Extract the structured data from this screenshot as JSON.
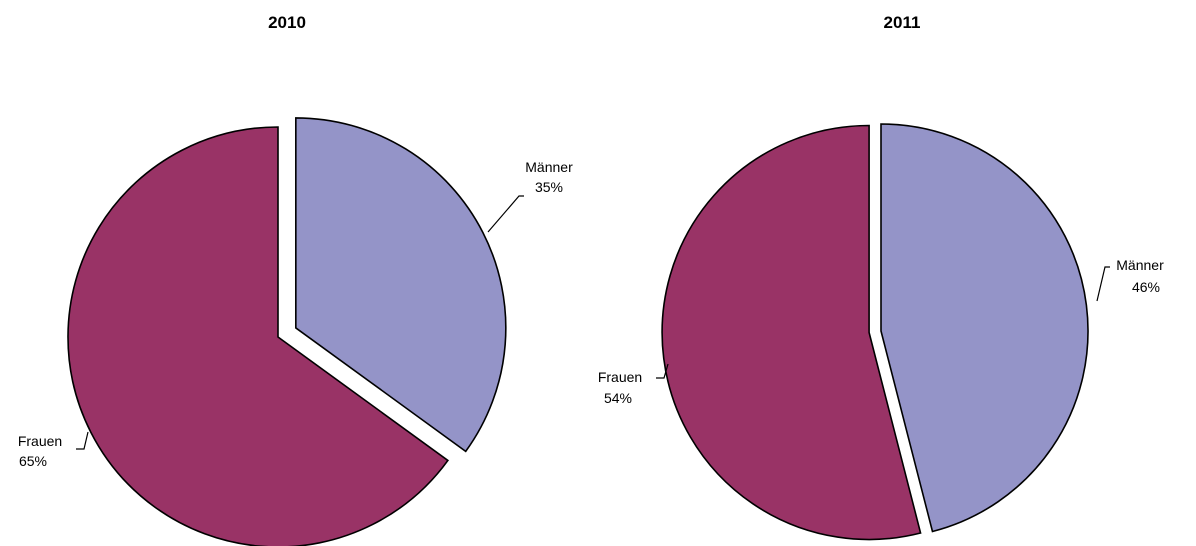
{
  "chart_data": [
    {
      "type": "pie",
      "title": "2010",
      "slices": [
        {
          "label": "Männer",
          "value": 35,
          "value_label": "35%",
          "color": "#9494c8",
          "exploded": true
        },
        {
          "label": "Frauen",
          "value": 65,
          "value_label": "65%",
          "color": "#993366",
          "exploded": false
        }
      ]
    },
    {
      "type": "pie",
      "title": "2011",
      "slices": [
        {
          "label": "Männer",
          "value": 46,
          "value_label": "46%",
          "color": "#9494c8",
          "exploded": false
        },
        {
          "label": "Frauen",
          "value": 54,
          "value_label": "54%",
          "color": "#993366",
          "exploded": true
        }
      ]
    }
  ]
}
